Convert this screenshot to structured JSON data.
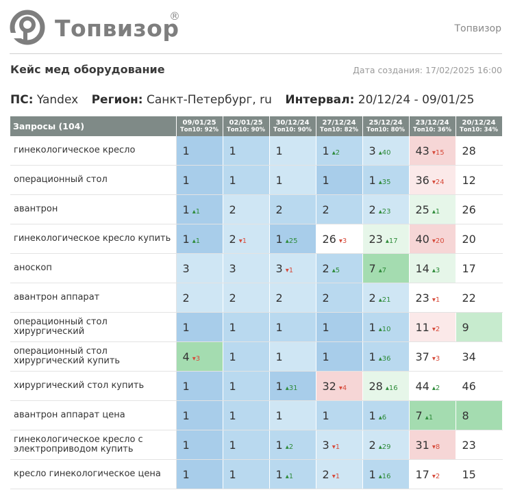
{
  "header": {
    "brand": "Топвизор",
    "registered": "®",
    "site_link": "Топвизор"
  },
  "report": {
    "title": "Кейс мед оборудование",
    "created": "Дата создания: 17/02/2025 16:00"
  },
  "params": {
    "ps_label": "ПС:",
    "ps_value": "Yandex",
    "region_label": "Регион:",
    "region_value": "Санкт-Петербург, ru",
    "interval_label": "Интервал:",
    "interval_value": "20/12/24 - 09/01/25"
  },
  "table": {
    "query_header": "Запросы (104)",
    "columns": [
      {
        "date": "09/01/25",
        "top": "Топ10: 92%"
      },
      {
        "date": "02/01/25",
        "top": "Топ10: 90%"
      },
      {
        "date": "30/12/24",
        "top": "Топ10: 90%"
      },
      {
        "date": "27/12/24",
        "top": "Топ10: 82%"
      },
      {
        "date": "25/12/24",
        "top": "Топ10: 80%"
      },
      {
        "date": "23/12/24",
        "top": "Топ10: 36%"
      },
      {
        "date": "20/12/24",
        "top": "Топ10: 34%"
      }
    ],
    "rows": [
      {
        "query": "гинекологическое кресло",
        "cells": [
          {
            "v": "1",
            "d": "",
            "dir": "",
            "bg": "c1"
          },
          {
            "v": "1",
            "d": "",
            "dir": "",
            "bg": "c2"
          },
          {
            "v": "1",
            "d": "",
            "dir": "",
            "bg": "c3"
          },
          {
            "v": "1",
            "d": "▴2",
            "dir": "up",
            "bg": "c2"
          },
          {
            "v": "3",
            "d": "▴40",
            "dir": "up",
            "bg": "c3"
          },
          {
            "v": "43",
            "d": "▾15",
            "dir": "down",
            "bg": "r1"
          },
          {
            "v": "28",
            "d": "",
            "dir": "",
            "bg": "w"
          }
        ]
      },
      {
        "query": "операционный стол",
        "cells": [
          {
            "v": "1",
            "d": "",
            "dir": "",
            "bg": "c1"
          },
          {
            "v": "1",
            "d": "",
            "dir": "",
            "bg": "c2"
          },
          {
            "v": "1",
            "d": "",
            "dir": "",
            "bg": "c3"
          },
          {
            "v": "1",
            "d": "",
            "dir": "",
            "bg": "c1"
          },
          {
            "v": "1",
            "d": "▴35",
            "dir": "up",
            "bg": "c2"
          },
          {
            "v": "36",
            "d": "▾24",
            "dir": "down",
            "bg": "r2"
          },
          {
            "v": "12",
            "d": "",
            "dir": "",
            "bg": "w"
          }
        ]
      },
      {
        "query": "авантрон",
        "cells": [
          {
            "v": "1",
            "d": "▴1",
            "dir": "up",
            "bg": "c1"
          },
          {
            "v": "2",
            "d": "",
            "dir": "",
            "bg": "c3"
          },
          {
            "v": "2",
            "d": "",
            "dir": "",
            "bg": "c2"
          },
          {
            "v": "2",
            "d": "",
            "dir": "",
            "bg": "c2"
          },
          {
            "v": "2",
            "d": "▴23",
            "dir": "up",
            "bg": "c3"
          },
          {
            "v": "25",
            "d": "▴1",
            "dir": "up",
            "bg": "g3"
          },
          {
            "v": "26",
            "d": "",
            "dir": "",
            "bg": "w"
          }
        ]
      },
      {
        "query": "гинекологическое кресло купить",
        "cells": [
          {
            "v": "1",
            "d": "▴1",
            "dir": "up",
            "bg": "c1"
          },
          {
            "v": "2",
            "d": "▾1",
            "dir": "down",
            "bg": "c3"
          },
          {
            "v": "1",
            "d": "▴25",
            "dir": "up",
            "bg": "c1"
          },
          {
            "v": "26",
            "d": "▾3",
            "dir": "down",
            "bg": "w"
          },
          {
            "v": "23",
            "d": "▴17",
            "dir": "up",
            "bg": "g3"
          },
          {
            "v": "40",
            "d": "▾20",
            "dir": "down",
            "bg": "r1"
          },
          {
            "v": "20",
            "d": "",
            "dir": "",
            "bg": "w"
          }
        ]
      },
      {
        "query": "аноскоп",
        "cells": [
          {
            "v": "3",
            "d": "",
            "dir": "",
            "bg": "c3"
          },
          {
            "v": "3",
            "d": "",
            "dir": "",
            "bg": "c3"
          },
          {
            "v": "3",
            "d": "▾1",
            "dir": "down",
            "bg": "c3"
          },
          {
            "v": "2",
            "d": "▴5",
            "dir": "up",
            "bg": "c2"
          },
          {
            "v": "7",
            "d": "▴7",
            "dir": "up",
            "bg": "g1"
          },
          {
            "v": "14",
            "d": "▴3",
            "dir": "up",
            "bg": "g3"
          },
          {
            "v": "17",
            "d": "",
            "dir": "",
            "bg": "w"
          }
        ]
      },
      {
        "query": "авантрон аппарат",
        "cells": [
          {
            "v": "2",
            "d": "",
            "dir": "",
            "bg": "c3"
          },
          {
            "v": "2",
            "d": "",
            "dir": "",
            "bg": "c3"
          },
          {
            "v": "2",
            "d": "",
            "dir": "",
            "bg": "c3"
          },
          {
            "v": "2",
            "d": "",
            "dir": "",
            "bg": "c2"
          },
          {
            "v": "2",
            "d": "▴21",
            "dir": "up",
            "bg": "c3"
          },
          {
            "v": "23",
            "d": "▾1",
            "dir": "down",
            "bg": "w"
          },
          {
            "v": "22",
            "d": "",
            "dir": "",
            "bg": "w"
          }
        ]
      },
      {
        "query": "операционный стол хирургический",
        "cells": [
          {
            "v": "1",
            "d": "",
            "dir": "",
            "bg": "c1"
          },
          {
            "v": "1",
            "d": "",
            "dir": "",
            "bg": "c2"
          },
          {
            "v": "1",
            "d": "",
            "dir": "",
            "bg": "c2"
          },
          {
            "v": "1",
            "d": "",
            "dir": "",
            "bg": "c1"
          },
          {
            "v": "1",
            "d": "▴10",
            "dir": "up",
            "bg": "c2"
          },
          {
            "v": "11",
            "d": "▾2",
            "dir": "down",
            "bg": "r2"
          },
          {
            "v": "9",
            "d": "",
            "dir": "",
            "bg": "g2"
          }
        ]
      },
      {
        "query": "операционный стол хирургический купить",
        "cells": [
          {
            "v": "4",
            "d": "▾3",
            "dir": "down",
            "bg": "g1"
          },
          {
            "v": "1",
            "d": "",
            "dir": "",
            "bg": "c2"
          },
          {
            "v": "1",
            "d": "",
            "dir": "",
            "bg": "c3"
          },
          {
            "v": "1",
            "d": "",
            "dir": "",
            "bg": "c1"
          },
          {
            "v": "1",
            "d": "▴36",
            "dir": "up",
            "bg": "c2"
          },
          {
            "v": "37",
            "d": "▾3",
            "dir": "down",
            "bg": "w"
          },
          {
            "v": "34",
            "d": "",
            "dir": "",
            "bg": "w"
          }
        ]
      },
      {
        "query": "хирургический стол купить",
        "cells": [
          {
            "v": "1",
            "d": "",
            "dir": "",
            "bg": "c1"
          },
          {
            "v": "1",
            "d": "",
            "dir": "",
            "bg": "c2"
          },
          {
            "v": "1",
            "d": "▴31",
            "dir": "up",
            "bg": "c1"
          },
          {
            "v": "32",
            "d": "▾4",
            "dir": "down",
            "bg": "r1"
          },
          {
            "v": "28",
            "d": "▴16",
            "dir": "up",
            "bg": "g3"
          },
          {
            "v": "44",
            "d": "▴2",
            "dir": "up",
            "bg": "w"
          },
          {
            "v": "46",
            "d": "",
            "dir": "",
            "bg": "w"
          }
        ]
      },
      {
        "query": "авантрон аппарат цена",
        "cells": [
          {
            "v": "1",
            "d": "",
            "dir": "",
            "bg": "c1"
          },
          {
            "v": "1",
            "d": "",
            "dir": "",
            "bg": "c2"
          },
          {
            "v": "1",
            "d": "",
            "dir": "",
            "bg": "c3"
          },
          {
            "v": "1",
            "d": "",
            "dir": "",
            "bg": "c2"
          },
          {
            "v": "1",
            "d": "▴6",
            "dir": "up",
            "bg": "c2"
          },
          {
            "v": "7",
            "d": "▴1",
            "dir": "up",
            "bg": "g1"
          },
          {
            "v": "8",
            "d": "",
            "dir": "",
            "bg": "g1"
          }
        ]
      },
      {
        "query": "гинекологическое кресло с электроприводом купить",
        "cells": [
          {
            "v": "1",
            "d": "",
            "dir": "",
            "bg": "c1"
          },
          {
            "v": "1",
            "d": "",
            "dir": "",
            "bg": "c2"
          },
          {
            "v": "1",
            "d": "▴2",
            "dir": "up",
            "bg": "c2"
          },
          {
            "v": "3",
            "d": "▾1",
            "dir": "down",
            "bg": "c3"
          },
          {
            "v": "2",
            "d": "▴29",
            "dir": "up",
            "bg": "c3"
          },
          {
            "v": "31",
            "d": "▾8",
            "dir": "down",
            "bg": "r1"
          },
          {
            "v": "23",
            "d": "",
            "dir": "",
            "bg": "w"
          }
        ]
      },
      {
        "query": "кресло гинекологическое цена",
        "cells": [
          {
            "v": "1",
            "d": "",
            "dir": "",
            "bg": "c1"
          },
          {
            "v": "1",
            "d": "",
            "dir": "",
            "bg": "c2"
          },
          {
            "v": "1",
            "d": "▴1",
            "dir": "up",
            "bg": "c2"
          },
          {
            "v": "2",
            "d": "▾1",
            "dir": "down",
            "bg": "c3"
          },
          {
            "v": "1",
            "d": "▴16",
            "dir": "up",
            "bg": "c2"
          },
          {
            "v": "17",
            "d": "▾2",
            "dir": "down",
            "bg": "w"
          },
          {
            "v": "15",
            "d": "",
            "dir": "",
            "bg": "w"
          }
        ]
      }
    ]
  }
}
